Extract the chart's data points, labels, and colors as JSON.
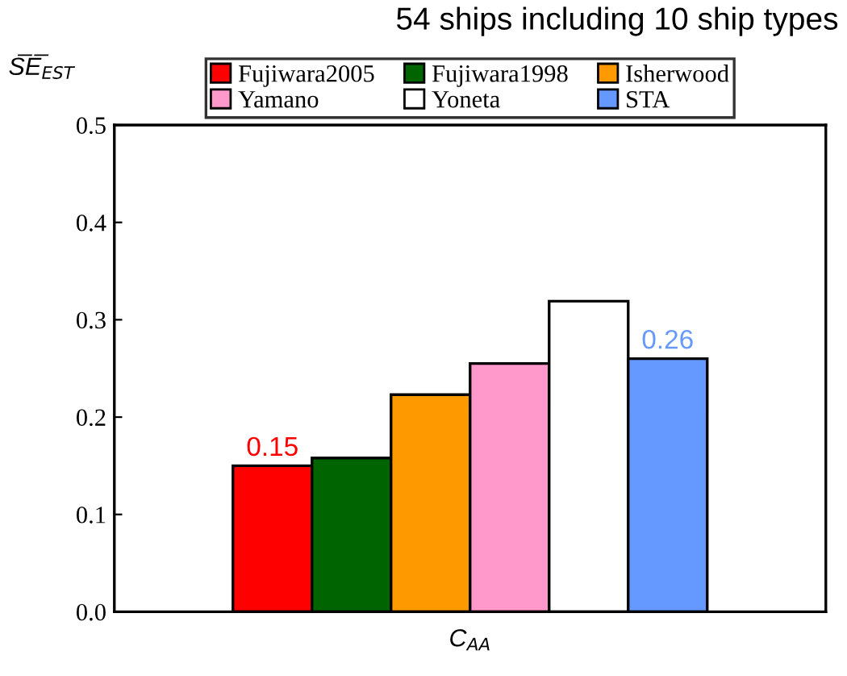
{
  "chart_data": {
    "type": "bar",
    "title": "54 ships including 10 ship types",
    "xlabel": "C$_{AA}$",
    "ylabel": "S̅E̅$_{EST}$",
    "categories": [
      null
    ],
    "series": [
      {
        "name": "Fujiwara2005",
        "color": "#ff0000",
        "values": [
          0.15
        ],
        "value_labels": [
          "0.15"
        ]
      },
      {
        "name": "Fujiwara1998",
        "color": "#006400",
        "values": [
          0.158
        ],
        "value_labels": [
          null
        ]
      },
      {
        "name": "Isherwood",
        "color": "#ff9900",
        "values": [
          0.223
        ],
        "value_labels": [
          null
        ]
      },
      {
        "name": "Yamano",
        "color": "#ff99cc",
        "values": [
          0.255
        ],
        "value_labels": [
          null
        ]
      },
      {
        "name": "Yoneta",
        "color": "#ffffff",
        "values": [
          0.319
        ],
        "value_labels": [
          null
        ]
      },
      {
        "name": "STA",
        "color": "#6699ff",
        "values": [
          0.26
        ],
        "value_labels": [
          "0.26"
        ]
      }
    ],
    "ylim": [
      0,
      0.5
    ],
    "yticks": [
      {
        "value": 0,
        "label": "0.0"
      },
      0.1,
      0.2,
      0.3,
      0.4,
      0.5
    ],
    "grid": false,
    "legend": "top"
  }
}
